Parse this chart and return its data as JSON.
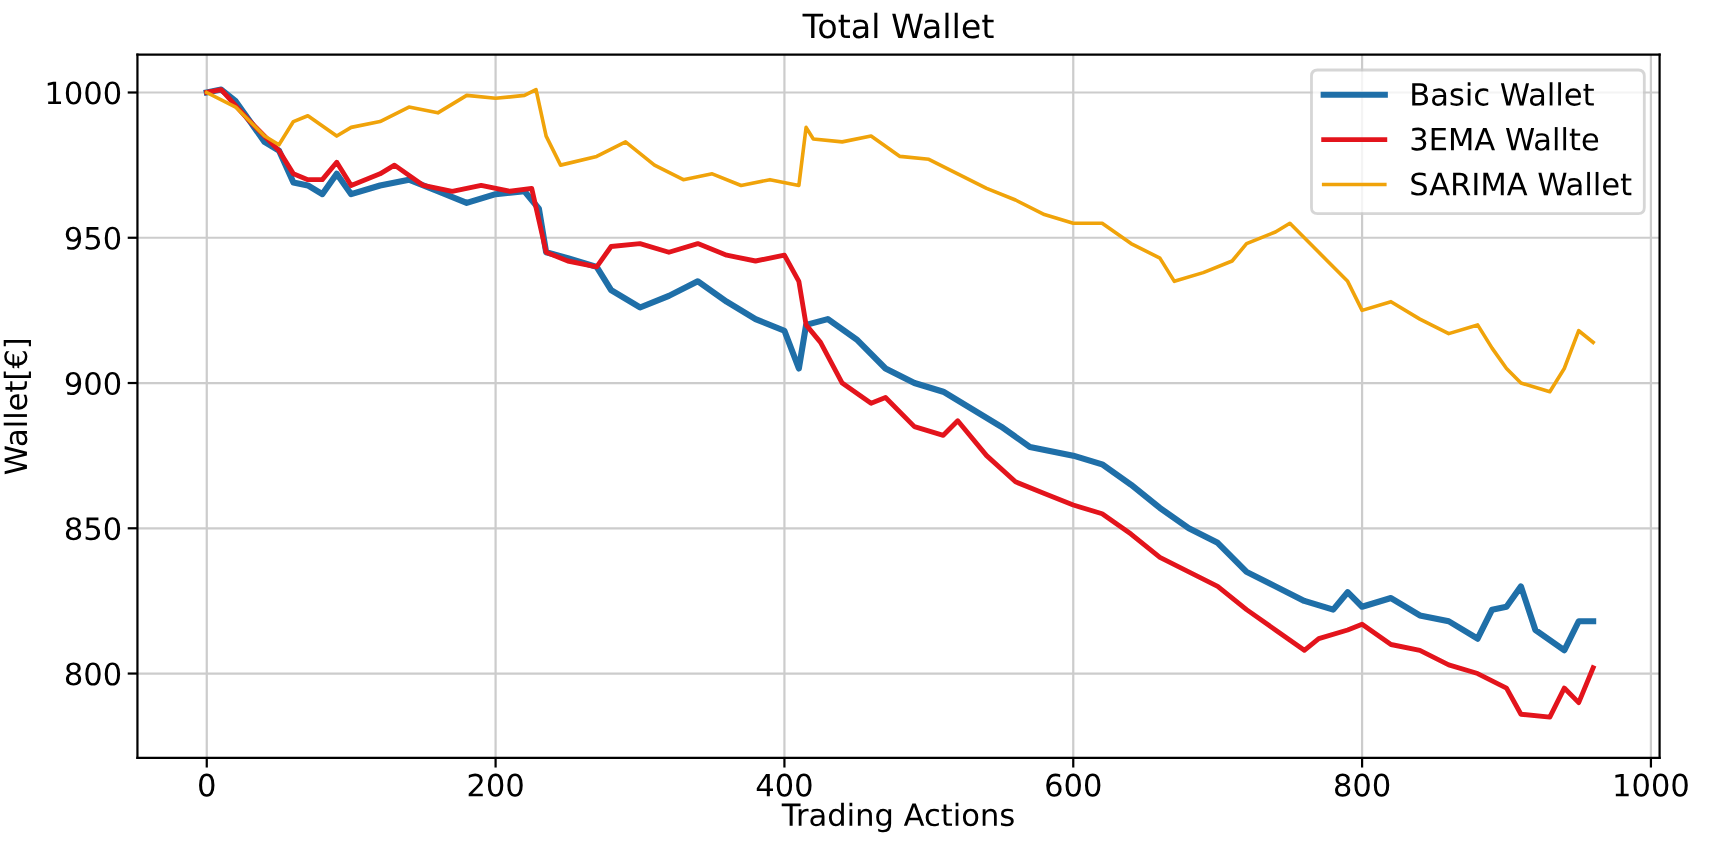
{
  "chart_data": {
    "type": "line",
    "title": "Total Wallet",
    "xlabel": "Trading Actions",
    "ylabel": "Wallet[€]",
    "xlim": [
      -48,
      1006
    ],
    "xticks": [
      0,
      200,
      400,
      600,
      800,
      1000
    ],
    "ylim": [
      771,
      1013
    ],
    "yticks": [
      800,
      850,
      900,
      950,
      1000
    ],
    "grid": true,
    "legend": "top right",
    "series": [
      {
        "name": "Basic Wallet",
        "color": "#1f6fa8",
        "x": [
          0,
          10,
          20,
          30,
          40,
          50,
          60,
          70,
          80,
          90,
          100,
          120,
          140,
          160,
          180,
          200,
          220,
          230,
          235,
          250,
          270,
          280,
          300,
          320,
          340,
          360,
          380,
          400,
          410,
          415,
          430,
          450,
          470,
          490,
          510,
          530,
          550,
          570,
          600,
          620,
          640,
          660,
          680,
          700,
          710,
          720,
          740,
          760,
          780,
          790,
          800,
          820,
          840,
          860,
          880,
          890,
          900,
          910,
          920,
          940,
          950,
          960
        ],
        "values": [
          1000,
          1001,
          997,
          990,
          983,
          980,
          969,
          968,
          965,
          972,
          965,
          968,
          970,
          966,
          962,
          965,
          966,
          960,
          945,
          943,
          940,
          932,
          926,
          930,
          935,
          928,
          922,
          918,
          905,
          920,
          922,
          915,
          905,
          900,
          897,
          891,
          885,
          878,
          875,
          872,
          865,
          857,
          850,
          845,
          840,
          835,
          830,
          825,
          822,
          828,
          823,
          826,
          820,
          818,
          812,
          822,
          823,
          830,
          815,
          808,
          818,
          818
        ]
      },
      {
        "name": "3EMA Wallte",
        "color": "#e3141c",
        "x": [
          0,
          10,
          30,
          50,
          60,
          70,
          80,
          90,
          100,
          120,
          130,
          150,
          170,
          190,
          210,
          225,
          235,
          250,
          270,
          280,
          300,
          320,
          340,
          360,
          380,
          400,
          410,
          415,
          425,
          440,
          460,
          470,
          490,
          510,
          520,
          540,
          560,
          580,
          600,
          620,
          640,
          660,
          680,
          700,
          720,
          740,
          760,
          770,
          790,
          800,
          820,
          840,
          860,
          880,
          900,
          910,
          930,
          940,
          950,
          960
        ],
        "values": [
          1000,
          1001,
          990,
          980,
          972,
          970,
          970,
          976,
          968,
          972,
          975,
          968,
          966,
          968,
          966,
          967,
          945,
          942,
          940,
          947,
          948,
          945,
          948,
          944,
          942,
          944,
          935,
          920,
          914,
          900,
          893,
          895,
          885,
          882,
          887,
          875,
          866,
          862,
          858,
          855,
          848,
          840,
          835,
          830,
          822,
          815,
          808,
          812,
          815,
          817,
          810,
          808,
          803,
          800,
          795,
          786,
          785,
          795,
          790,
          802
        ]
      },
      {
        "name": "SARIMA Wallet",
        "color": "#f0a30a",
        "x": [
          0,
          20,
          40,
          50,
          60,
          70,
          90,
          100,
          120,
          140,
          160,
          180,
          200,
          220,
          228,
          235,
          245,
          270,
          290,
          310,
          330,
          350,
          370,
          390,
          410,
          415,
          420,
          440,
          460,
          480,
          500,
          520,
          540,
          560,
          580,
          600,
          620,
          640,
          660,
          670,
          690,
          710,
          720,
          740,
          750,
          770,
          790,
          800,
          820,
          840,
          860,
          880,
          890,
          900,
          910,
          930,
          940,
          950,
          960
        ],
        "values": [
          1000,
          995,
          985,
          982,
          990,
          992,
          985,
          988,
          990,
          995,
          993,
          999,
          998,
          999,
          1001,
          985,
          975,
          978,
          983,
          975,
          970,
          972,
          968,
          970,
          968,
          988,
          984,
          983,
          985,
          978,
          977,
          972,
          967,
          963,
          958,
          955,
          955,
          948,
          943,
          935,
          938,
          942,
          948,
          952,
          955,
          945,
          935,
          925,
          928,
          922,
          917,
          920,
          912,
          905,
          900,
          897,
          905,
          918,
          914
        ]
      }
    ]
  }
}
